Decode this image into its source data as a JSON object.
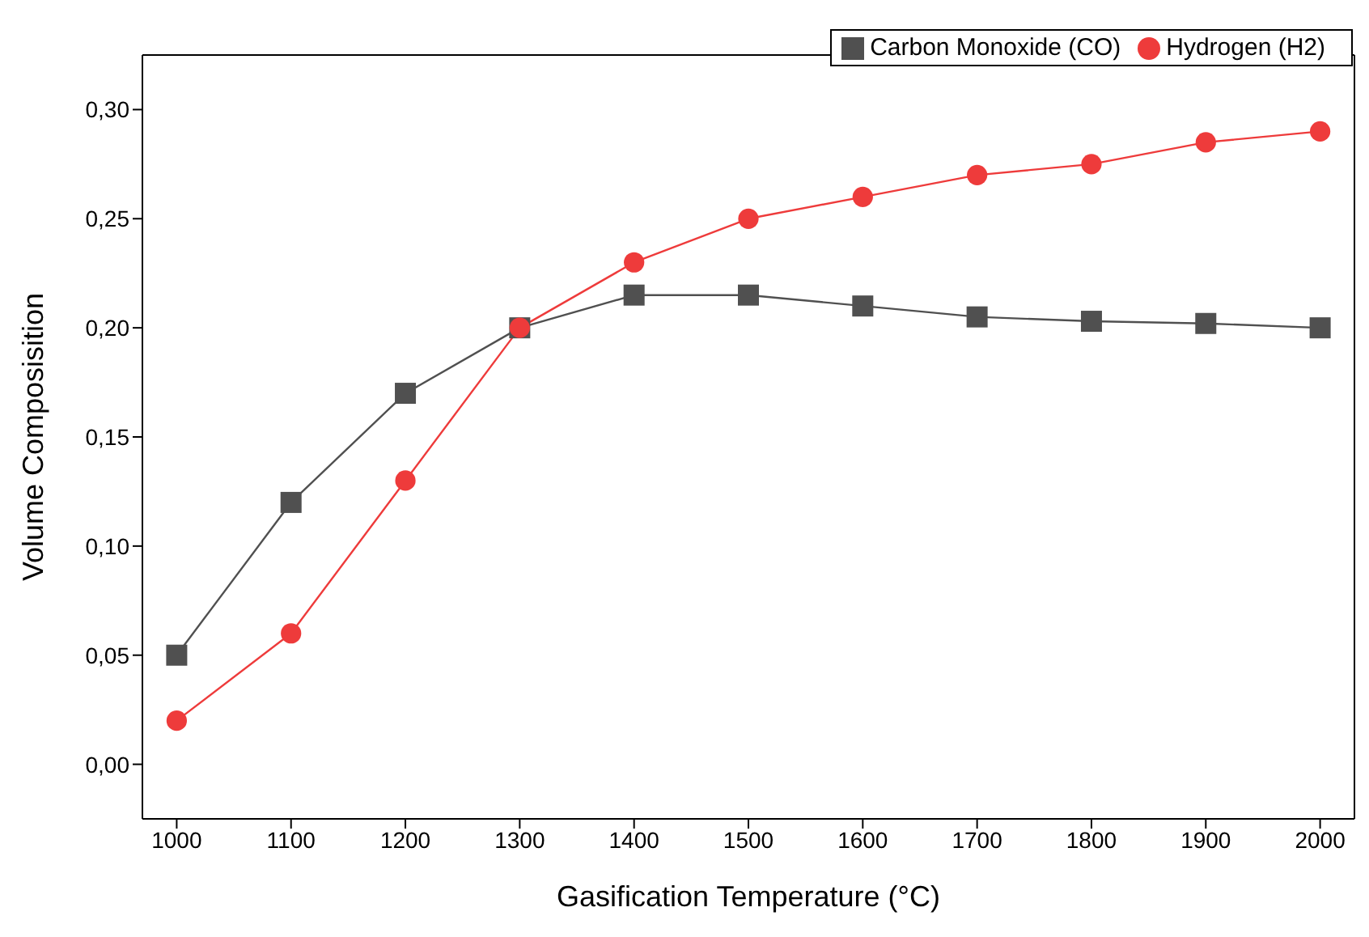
{
  "chart_data": {
    "type": "line",
    "xlabel": "Gasification Temperature (°C)",
    "ylabel": "Volume Composisition",
    "x": [
      1000,
      1100,
      1200,
      1300,
      1400,
      1500,
      1600,
      1700,
      1800,
      1900,
      2000
    ],
    "series": [
      {
        "name": "Carbon Monoxide (CO)",
        "color": "#505050",
        "marker": "square",
        "values": [
          0.05,
          0.12,
          0.17,
          0.2,
          0.215,
          0.215,
          0.21,
          0.205,
          0.203,
          0.202,
          0.2
        ]
      },
      {
        "name": "Hydrogen (H2)",
        "color": "#ee3b3b",
        "marker": "circle",
        "values": [
          0.02,
          0.06,
          0.13,
          0.2,
          0.23,
          0.25,
          0.26,
          0.27,
          0.275,
          0.285,
          0.29
        ]
      }
    ],
    "xlim": [
      970,
      2030
    ],
    "xticks": [
      1000,
      1100,
      1200,
      1300,
      1400,
      1500,
      1600,
      1700,
      1800,
      1900,
      2000
    ],
    "ylim": [
      -0.025,
      0.325
    ],
    "yticks": [
      {
        "value": 0,
        "label": "0,00"
      },
      {
        "value": 0.05,
        "label": "0,05"
      },
      {
        "value": 0.1,
        "label": "0,10"
      },
      {
        "value": 0.15,
        "label": "0,15"
      },
      {
        "value": 0.2,
        "label": "0,20"
      },
      {
        "value": 0.25,
        "label": "0,25"
      },
      {
        "value": 0.3,
        "label": "0,30"
      }
    ],
    "grid": false,
    "legend": "top right",
    "line_style": "solid"
  }
}
